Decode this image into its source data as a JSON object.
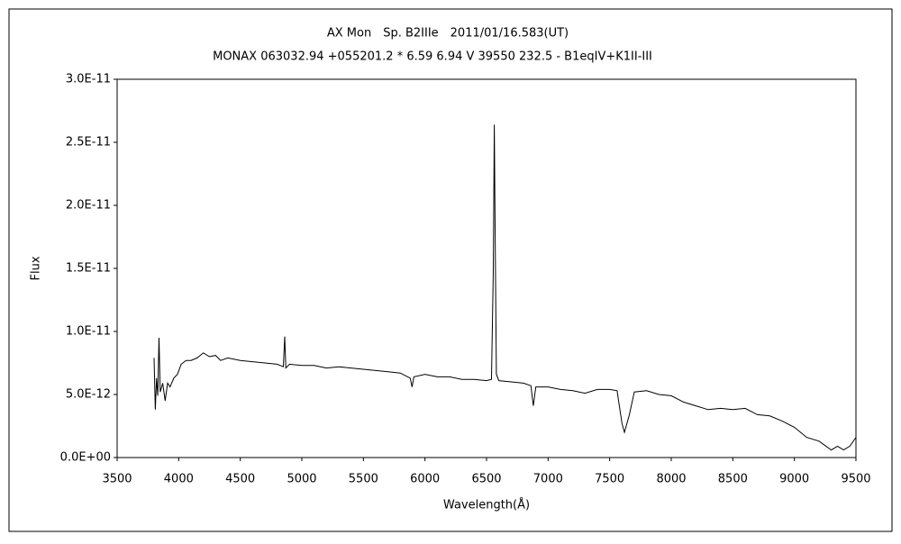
{
  "chart_data": {
    "type": "line",
    "title": "AX Mon　Sp. B2IIIe　2011/01/16.583(UT)",
    "subtitle": "MONAX 063032.94 +055201.2 * 6.59 6.94 V 39550 232.5 - B1eqIV+K1II-III",
    "x_label": "Wavelength(Å)",
    "y_label": "Flux",
    "xlim": [
      3500,
      9500
    ],
    "xticks": [
      3500,
      4000,
      4500,
      5000,
      5500,
      6000,
      6500,
      7000,
      7500,
      8000,
      8500,
      9000,
      9500
    ],
    "ylim": [
      0,
      3e-11
    ],
    "yticks": [
      {
        "value": 0,
        "label": "0.0E+00"
      },
      {
        "value": 5e-12,
        "label": "5.0E-12"
      },
      {
        "value": 1e-11,
        "label": "1.0E-11"
      },
      {
        "value": 1.5e-11,
        "label": "1.5E-11"
      },
      {
        "value": 2e-11,
        "label": "2.0E-11"
      },
      {
        "value": 2.5e-11,
        "label": "2.5E-11"
      },
      {
        "value": 3e-11,
        "label": "3.0E-11"
      }
    ],
    "grid": false,
    "x": [
      3800,
      3810,
      3820,
      3830,
      3840,
      3850,
      3870,
      3890,
      3910,
      3930,
      3960,
      3990,
      4020,
      4060,
      4100,
      4150,
      4200,
      4250,
      4300,
      4340,
      4400,
      4500,
      4600,
      4700,
      4800,
      4850,
      4861,
      4870,
      4900,
      5000,
      5100,
      5200,
      5300,
      5400,
      5500,
      5600,
      5700,
      5800,
      5880,
      5895,
      5910,
      6000,
      6100,
      6200,
      6300,
      6400,
      6500,
      6540,
      6555,
      6563,
      6570,
      6580,
      6600,
      6700,
      6800,
      6860,
      6880,
      6900,
      7000,
      7100,
      7200,
      7300,
      7400,
      7500,
      7560,
      7600,
      7620,
      7660,
      7700,
      7800,
      7900,
      8000,
      8100,
      8200,
      8300,
      8400,
      8500,
      8600,
      8700,
      8800,
      8900,
      9000,
      9100,
      9200,
      9300,
      9350,
      9400,
      9450,
      9500
    ],
    "series": [
      {
        "color": "#000000",
        "values": [
          7.9e-12,
          3.8e-12,
          6.3e-12,
          4.9e-12,
          9.5e-12,
          5.2e-12,
          5.9e-12,
          4.5e-12,
          5.9e-12,
          5.6e-12,
          6.3e-12,
          6.6e-12,
          7.4e-12,
          7.7e-12,
          7.7e-12,
          7.9e-12,
          8.3e-12,
          8e-12,
          8.1e-12,
          7.7e-12,
          7.9e-12,
          7.7e-12,
          7.6e-12,
          7.5e-12,
          7.4e-12,
          7.2e-12,
          9.6e-12,
          7.1e-12,
          7.4e-12,
          7.3e-12,
          7.3e-12,
          7.1e-12,
          7.2e-12,
          7.1e-12,
          7e-12,
          6.9e-12,
          6.8e-12,
          6.7e-12,
          6.3e-12,
          5.6e-12,
          6.4e-12,
          6.6e-12,
          6.4e-12,
          6.4e-12,
          6.2e-12,
          6.2e-12,
          6.1e-12,
          6.2e-12,
          1.49e-11,
          2.64e-11,
          1.77e-11,
          6.6e-12,
          6.1e-12,
          6e-12,
          5.9e-12,
          5.7e-12,
          4.1e-12,
          5.6e-12,
          5.6e-12,
          5.4e-12,
          5.3e-12,
          5.1e-12,
          5.4e-12,
          5.4e-12,
          5.3e-12,
          2.7e-12,
          2e-12,
          3.4e-12,
          5.2e-12,
          5.3e-12,
          5e-12,
          4.9e-12,
          4.4e-12,
          4.1e-12,
          3.8e-12,
          3.9e-12,
          3.8e-12,
          3.9e-12,
          3.4e-12,
          3.3e-12,
          2.9e-12,
          2.4e-12,
          1.6e-12,
          1.3e-12,
          6e-13,
          9e-13,
          6e-13,
          9e-13,
          1.6e-12
        ]
      }
    ]
  }
}
